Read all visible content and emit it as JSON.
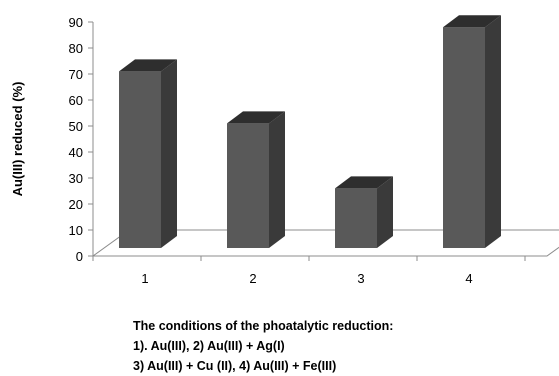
{
  "chart_data": {
    "type": "bar",
    "ylabel": "Au(III) reduced (%)",
    "xlabel": "",
    "categories": [
      "1",
      "2",
      "3",
      "4"
    ],
    "values": [
      71,
      51,
      26,
      88
    ],
    "ylim": [
      0,
      90
    ],
    "yticks": [
      0,
      10,
      20,
      30,
      40,
      50,
      60,
      70,
      80,
      90
    ],
    "style": "3d-column",
    "colors": {
      "bar_front": "#595959",
      "bar_side": "#3a3a3a",
      "bar_top": "#2e2e2e"
    }
  },
  "caption": {
    "lines": [
      "The conditions of the  phoatalytic reduction:",
      "1). Au(III), 2) Au(III) +  Ag(I)",
      "3) Au(III) + Cu (II), 4) Au(III) + Fe(III)"
    ]
  }
}
